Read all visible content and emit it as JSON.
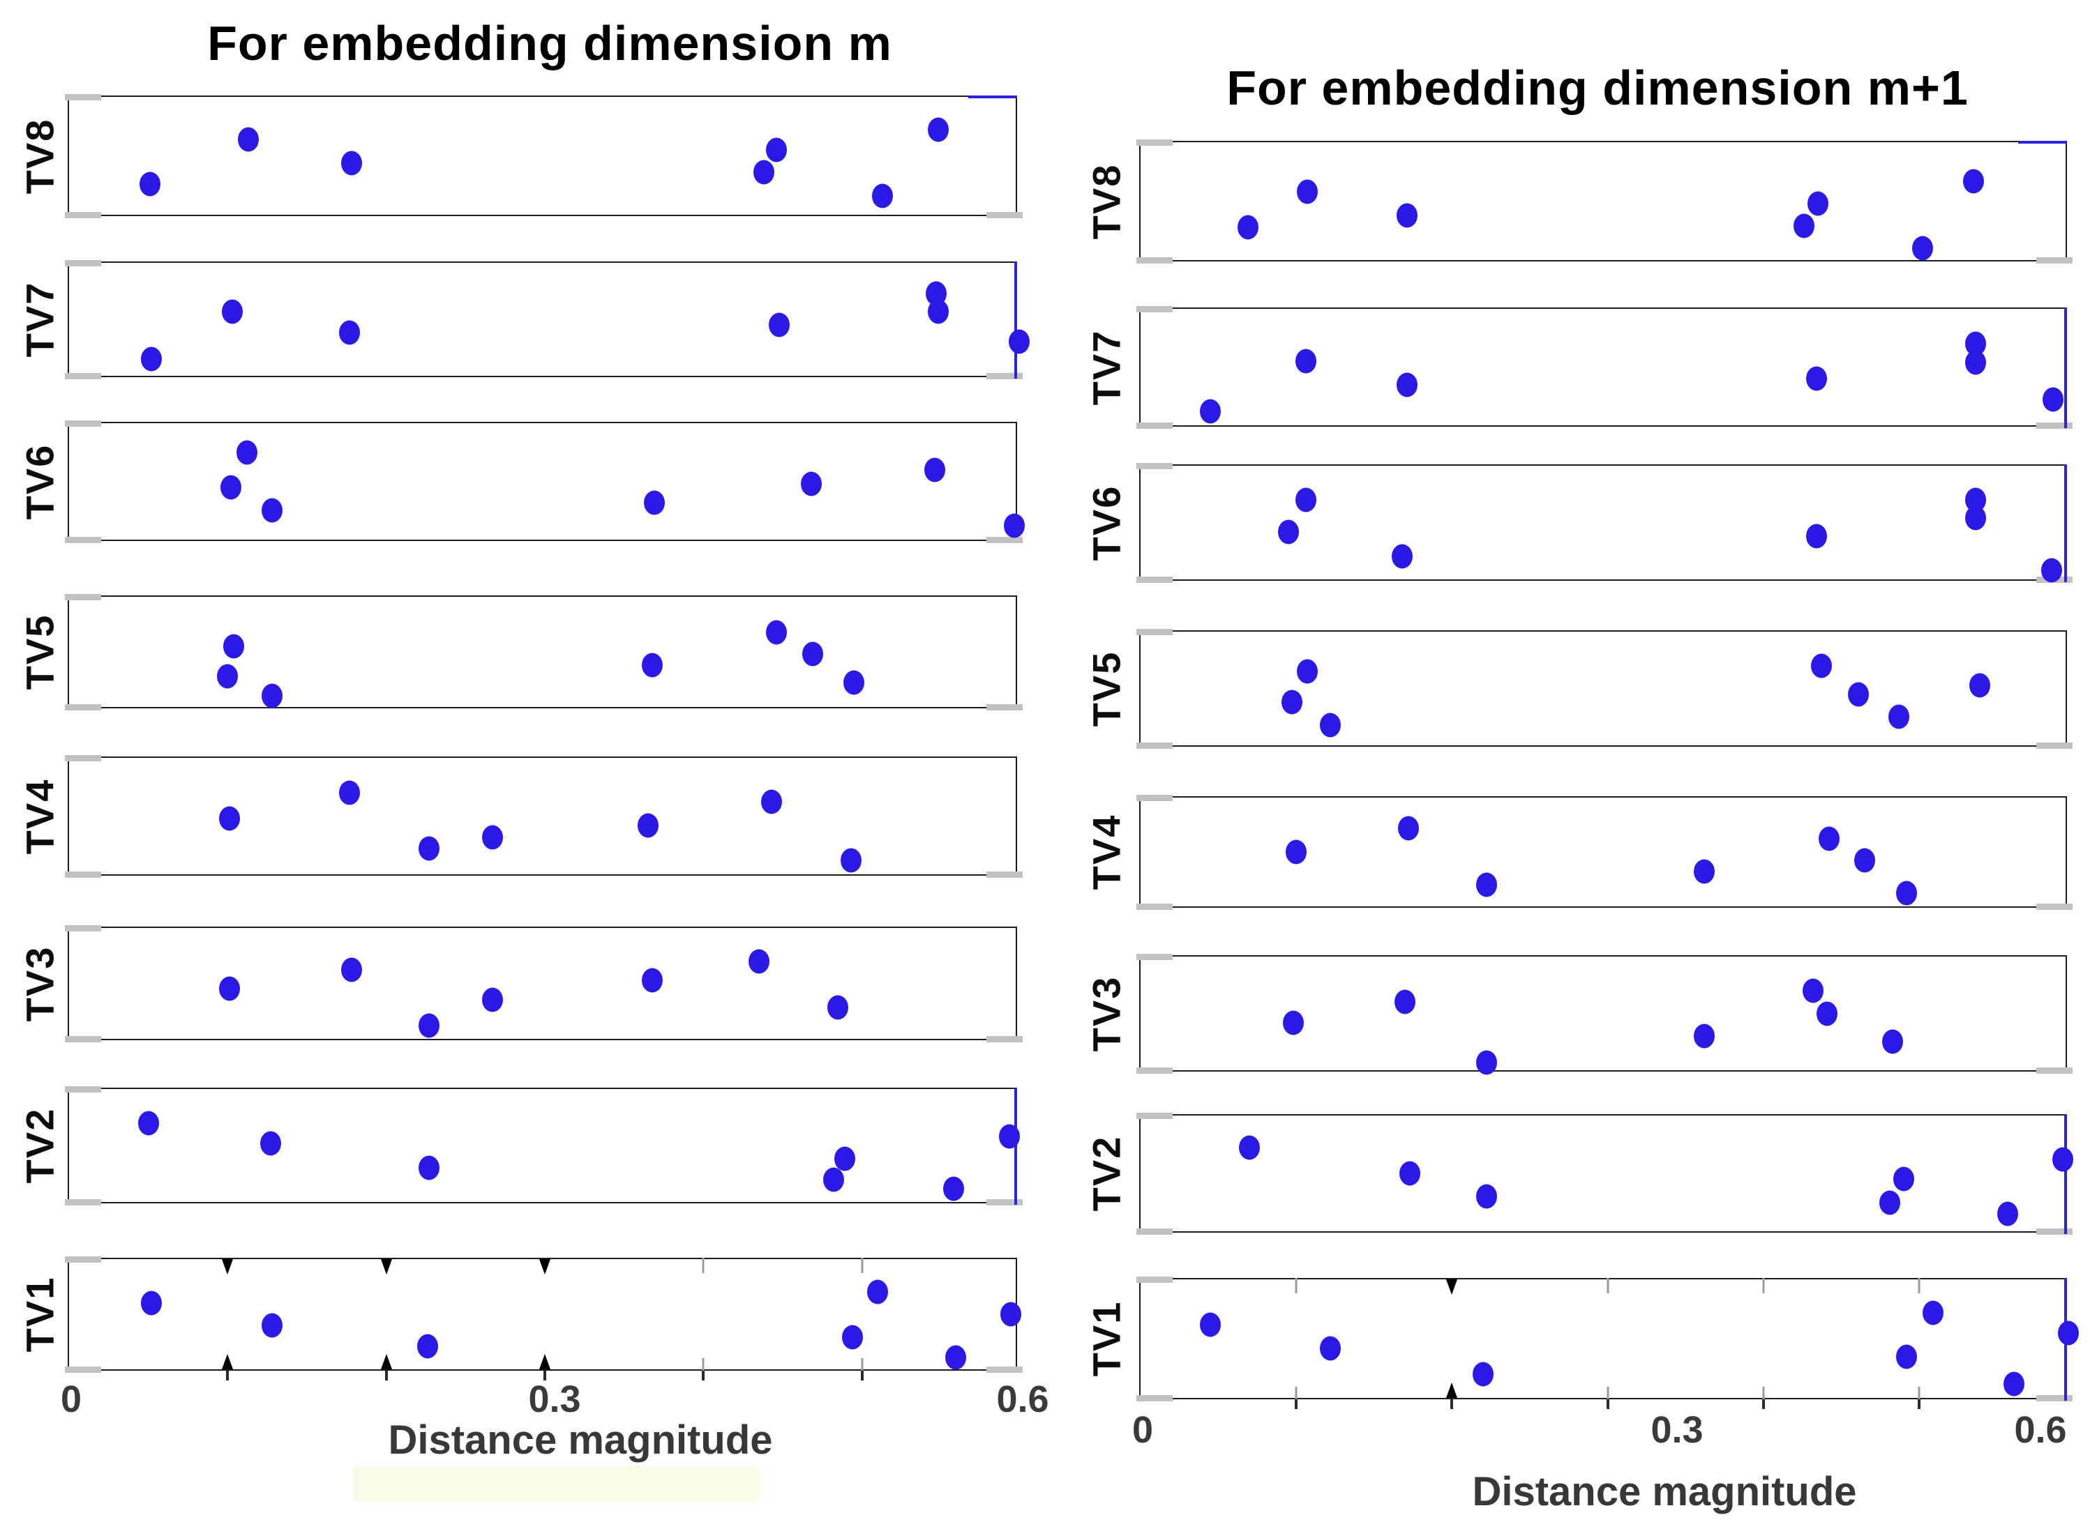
{
  "figure": {
    "left_title": "For embedding dimension m",
    "right_title": "For embedding dimension m+1",
    "x_axis_label": "Distance magnitude",
    "x_tick_labels": [
      "0",
      "0.3",
      "0.6"
    ],
    "row_labels_top_to_bottom": [
      "TV8",
      "TV7",
      "TV6",
      "TV5",
      "TV4",
      "TV3",
      "TV2",
      "TV1"
    ],
    "dot_color": "#2b1ae6",
    "accent_edge_color": "#2a22dd"
  },
  "chart_data": [
    {
      "type": "scatter",
      "subtype": "horizontal-strip-dot-plot",
      "title": "For embedding dimension m",
      "xlabel": "Distance magnitude",
      "xlim": [
        0,
        0.6
      ],
      "xticks": [
        {
          "value": 0,
          "label": "0"
        },
        {
          "value": 0.3,
          "label": "0.3"
        },
        {
          "value": 0.6,
          "label": "0.6"
        }
      ],
      "grid": false,
      "legend": null,
      "rows": [
        {
          "label": "TV8",
          "points": [
            {
              "x": 0.051,
              "jy": 0.74
            },
            {
              "x": 0.113,
              "jy": 0.36
            },
            {
              "x": 0.178,
              "jy": 0.56
            },
            {
              "x": 0.438,
              "jy": 0.64
            },
            {
              "x": 0.446,
              "jy": 0.45
            },
            {
              "x": 0.513,
              "jy": 0.84
            },
            {
              "x": 0.548,
              "jy": 0.28
            }
          ]
        },
        {
          "label": "TV7",
          "points": [
            {
              "x": 0.052,
              "jy": 0.85
            },
            {
              "x": 0.103,
              "jy": 0.43
            },
            {
              "x": 0.177,
              "jy": 0.62
            },
            {
              "x": 0.448,
              "jy": 0.55
            },
            {
              "x": 0.547,
              "jy": 0.27
            },
            {
              "x": 0.548,
              "jy": 0.43
            },
            {
              "x": 0.599,
              "jy": 0.7
            }
          ]
        },
        {
          "label": "TV6",
          "points": [
            {
              "x": 0.102,
              "jy": 0.55
            },
            {
              "x": 0.112,
              "jy": 0.25
            },
            {
              "x": 0.128,
              "jy": 0.75
            },
            {
              "x": 0.369,
              "jy": 0.68
            },
            {
              "x": 0.468,
              "jy": 0.52
            },
            {
              "x": 0.546,
              "jy": 0.4
            },
            {
              "x": 0.596,
              "jy": 0.88
            }
          ]
        },
        {
          "label": "TV5",
          "points": [
            {
              "x": 0.1,
              "jy": 0.72
            },
            {
              "x": 0.104,
              "jy": 0.45
            },
            {
              "x": 0.128,
              "jy": 0.9
            },
            {
              "x": 0.368,
              "jy": 0.62
            },
            {
              "x": 0.446,
              "jy": 0.32
            },
            {
              "x": 0.469,
              "jy": 0.52
            },
            {
              "x": 0.495,
              "jy": 0.78
            }
          ]
        },
        {
          "label": "TV4",
          "points": [
            {
              "x": 0.101,
              "jy": 0.52
            },
            {
              "x": 0.177,
              "jy": 0.3
            },
            {
              "x": 0.227,
              "jy": 0.78
            },
            {
              "x": 0.267,
              "jy": 0.68
            },
            {
              "x": 0.365,
              "jy": 0.58
            },
            {
              "x": 0.443,
              "jy": 0.38
            },
            {
              "x": 0.493,
              "jy": 0.88
            }
          ]
        },
        {
          "label": "TV3",
          "points": [
            {
              "x": 0.101,
              "jy": 0.55
            },
            {
              "x": 0.178,
              "jy": 0.38
            },
            {
              "x": 0.227,
              "jy": 0.88
            },
            {
              "x": 0.267,
              "jy": 0.65
            },
            {
              "x": 0.368,
              "jy": 0.47
            },
            {
              "x": 0.435,
              "jy": 0.3
            },
            {
              "x": 0.485,
              "jy": 0.72
            }
          ]
        },
        {
          "label": "TV2",
          "points": [
            {
              "x": 0.05,
              "jy": 0.3
            },
            {
              "x": 0.127,
              "jy": 0.48
            },
            {
              "x": 0.227,
              "jy": 0.7
            },
            {
              "x": 0.482,
              "jy": 0.8
            },
            {
              "x": 0.489,
              "jy": 0.62
            },
            {
              "x": 0.558,
              "jy": 0.88
            },
            {
              "x": 0.593,
              "jy": 0.42
            }
          ]
        },
        {
          "label": "TV1",
          "points": [
            {
              "x": 0.052,
              "jy": 0.4
            },
            {
              "x": 0.128,
              "jy": 0.6
            },
            {
              "x": 0.226,
              "jy": 0.79
            },
            {
              "x": 0.494,
              "jy": 0.71
            },
            {
              "x": 0.51,
              "jy": 0.3
            },
            {
              "x": 0.559,
              "jy": 0.89
            },
            {
              "x": 0.594,
              "jy": 0.5
            }
          ]
        }
      ]
    },
    {
      "type": "scatter",
      "subtype": "horizontal-strip-dot-plot",
      "title": "For embedding dimension m+1",
      "xlabel": "Distance magnitude",
      "xlim": [
        0,
        0.6
      ],
      "xticks": [
        {
          "value": 0,
          "label": "0"
        },
        {
          "value": 0.3,
          "label": "0.3"
        },
        {
          "value": 0.6,
          "label": "0.6"
        }
      ],
      "grid": false,
      "legend": null,
      "rows": [
        {
          "label": "TV8",
          "points": [
            {
              "x": 0.069,
              "jy": 0.72
            },
            {
              "x": 0.107,
              "jy": 0.42
            },
            {
              "x": 0.171,
              "jy": 0.62
            },
            {
              "x": 0.426,
              "jy": 0.71
            },
            {
              "x": 0.435,
              "jy": 0.52
            },
            {
              "x": 0.502,
              "jy": 0.9
            },
            {
              "x": 0.535,
              "jy": 0.33
            }
          ]
        },
        {
          "label": "TV7",
          "points": [
            {
              "x": 0.045,
              "jy": 0.88
            },
            {
              "x": 0.106,
              "jy": 0.45
            },
            {
              "x": 0.171,
              "jy": 0.65
            },
            {
              "x": 0.434,
              "jy": 0.6
            },
            {
              "x": 0.536,
              "jy": 0.3
            },
            {
              "x": 0.536,
              "jy": 0.46
            },
            {
              "x": 0.586,
              "jy": 0.78
            }
          ]
        },
        {
          "label": "TV6",
          "points": [
            {
              "x": 0.095,
              "jy": 0.58
            },
            {
              "x": 0.106,
              "jy": 0.3
            },
            {
              "x": 0.168,
              "jy": 0.8
            },
            {
              "x": 0.434,
              "jy": 0.62
            },
            {
              "x": 0.536,
              "jy": 0.3
            },
            {
              "x": 0.536,
              "jy": 0.46
            },
            {
              "x": 0.585,
              "jy": 0.92
            }
          ]
        },
        {
          "label": "TV5",
          "points": [
            {
              "x": 0.097,
              "jy": 0.62
            },
            {
              "x": 0.107,
              "jy": 0.35
            },
            {
              "x": 0.122,
              "jy": 0.82
            },
            {
              "x": 0.437,
              "jy": 0.3
            },
            {
              "x": 0.461,
              "jy": 0.55
            },
            {
              "x": 0.487,
              "jy": 0.75
            },
            {
              "x": 0.539,
              "jy": 0.47
            }
          ]
        },
        {
          "label": "TV4",
          "points": [
            {
              "x": 0.1,
              "jy": 0.5
            },
            {
              "x": 0.172,
              "jy": 0.28
            },
            {
              "x": 0.222,
              "jy": 0.8
            },
            {
              "x": 0.362,
              "jy": 0.68
            },
            {
              "x": 0.442,
              "jy": 0.38
            },
            {
              "x": 0.465,
              "jy": 0.58
            },
            {
              "x": 0.492,
              "jy": 0.88
            }
          ]
        },
        {
          "label": "TV3",
          "points": [
            {
              "x": 0.098,
              "jy": 0.58
            },
            {
              "x": 0.17,
              "jy": 0.4
            },
            {
              "x": 0.222,
              "jy": 0.93
            },
            {
              "x": 0.362,
              "jy": 0.7
            },
            {
              "x": 0.432,
              "jy": 0.3
            },
            {
              "x": 0.441,
              "jy": 0.5
            },
            {
              "x": 0.483,
              "jy": 0.75
            }
          ]
        },
        {
          "label": "TV2",
          "points": [
            {
              "x": 0.07,
              "jy": 0.28
            },
            {
              "x": 0.173,
              "jy": 0.5
            },
            {
              "x": 0.222,
              "jy": 0.7
            },
            {
              "x": 0.481,
              "jy": 0.75
            },
            {
              "x": 0.49,
              "jy": 0.55
            },
            {
              "x": 0.557,
              "jy": 0.85
            },
            {
              "x": 0.592,
              "jy": 0.38
            }
          ]
        },
        {
          "label": "TV1",
          "points": [
            {
              "x": 0.045,
              "jy": 0.38
            },
            {
              "x": 0.122,
              "jy": 0.58
            },
            {
              "x": 0.22,
              "jy": 0.8
            },
            {
              "x": 0.492,
              "jy": 0.65
            },
            {
              "x": 0.509,
              "jy": 0.28
            },
            {
              "x": 0.561,
              "jy": 0.88
            },
            {
              "x": 0.596,
              "jy": 0.45
            }
          ]
        }
      ]
    }
  ]
}
